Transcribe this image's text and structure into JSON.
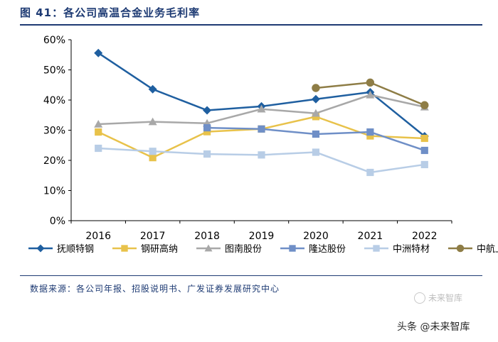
{
  "title": "图 41：各公司高温合金业务毛利率",
  "source": "数据来源：各公司年报、招股说明书、广发证券发展研究中心",
  "watermark": {
    "logo_text": "未来智库",
    "main_text": "头条 @未来智库"
  },
  "colors": {
    "title": "#1d3a73",
    "axis": "#000000"
  },
  "chart_data": {
    "type": "line",
    "title": "",
    "xlabel": "",
    "ylabel": "",
    "x": [
      "2016",
      "2017",
      "2018",
      "2019",
      "2020",
      "2021",
      "2022"
    ],
    "yticks": [
      "0%",
      "10%",
      "20%",
      "30%",
      "40%",
      "50%",
      "60%"
    ],
    "ylim": [
      0,
      60
    ],
    "legend_position": "bottom",
    "series": [
      {
        "name": "抚顺特钢",
        "color": "#1f5fa0",
        "marker": "diamond",
        "values": [
          55.6,
          43.6,
          36.6,
          37.9,
          40.3,
          42.6,
          28.0
        ]
      },
      {
        "name": "钢研高纳",
        "color": "#e8c24a",
        "marker": "square",
        "values": [
          29.4,
          20.9,
          29.5,
          30.4,
          34.5,
          28.1,
          27.3
        ]
      },
      {
        "name": "图南股份",
        "color": "#a8a8a8",
        "marker": "triangle",
        "values": [
          32.0,
          32.8,
          32.3,
          37.0,
          35.6,
          41.7,
          37.7
        ]
      },
      {
        "name": "隆达股份",
        "color": "#6f8fc7",
        "marker": "square",
        "values": [
          null,
          null,
          30.8,
          30.4,
          28.7,
          29.4,
          23.3
        ]
      },
      {
        "name": "中洲特材",
        "color": "#b8cde6",
        "marker": "square",
        "values": [
          24.0,
          23.0,
          22.1,
          21.8,
          22.7,
          16.0,
          18.6
        ]
      },
      {
        "name": "中航上大",
        "color": "#8e7d46",
        "marker": "circle",
        "values": [
          null,
          null,
          null,
          null,
          44.0,
          45.8,
          38.3
        ]
      }
    ]
  }
}
